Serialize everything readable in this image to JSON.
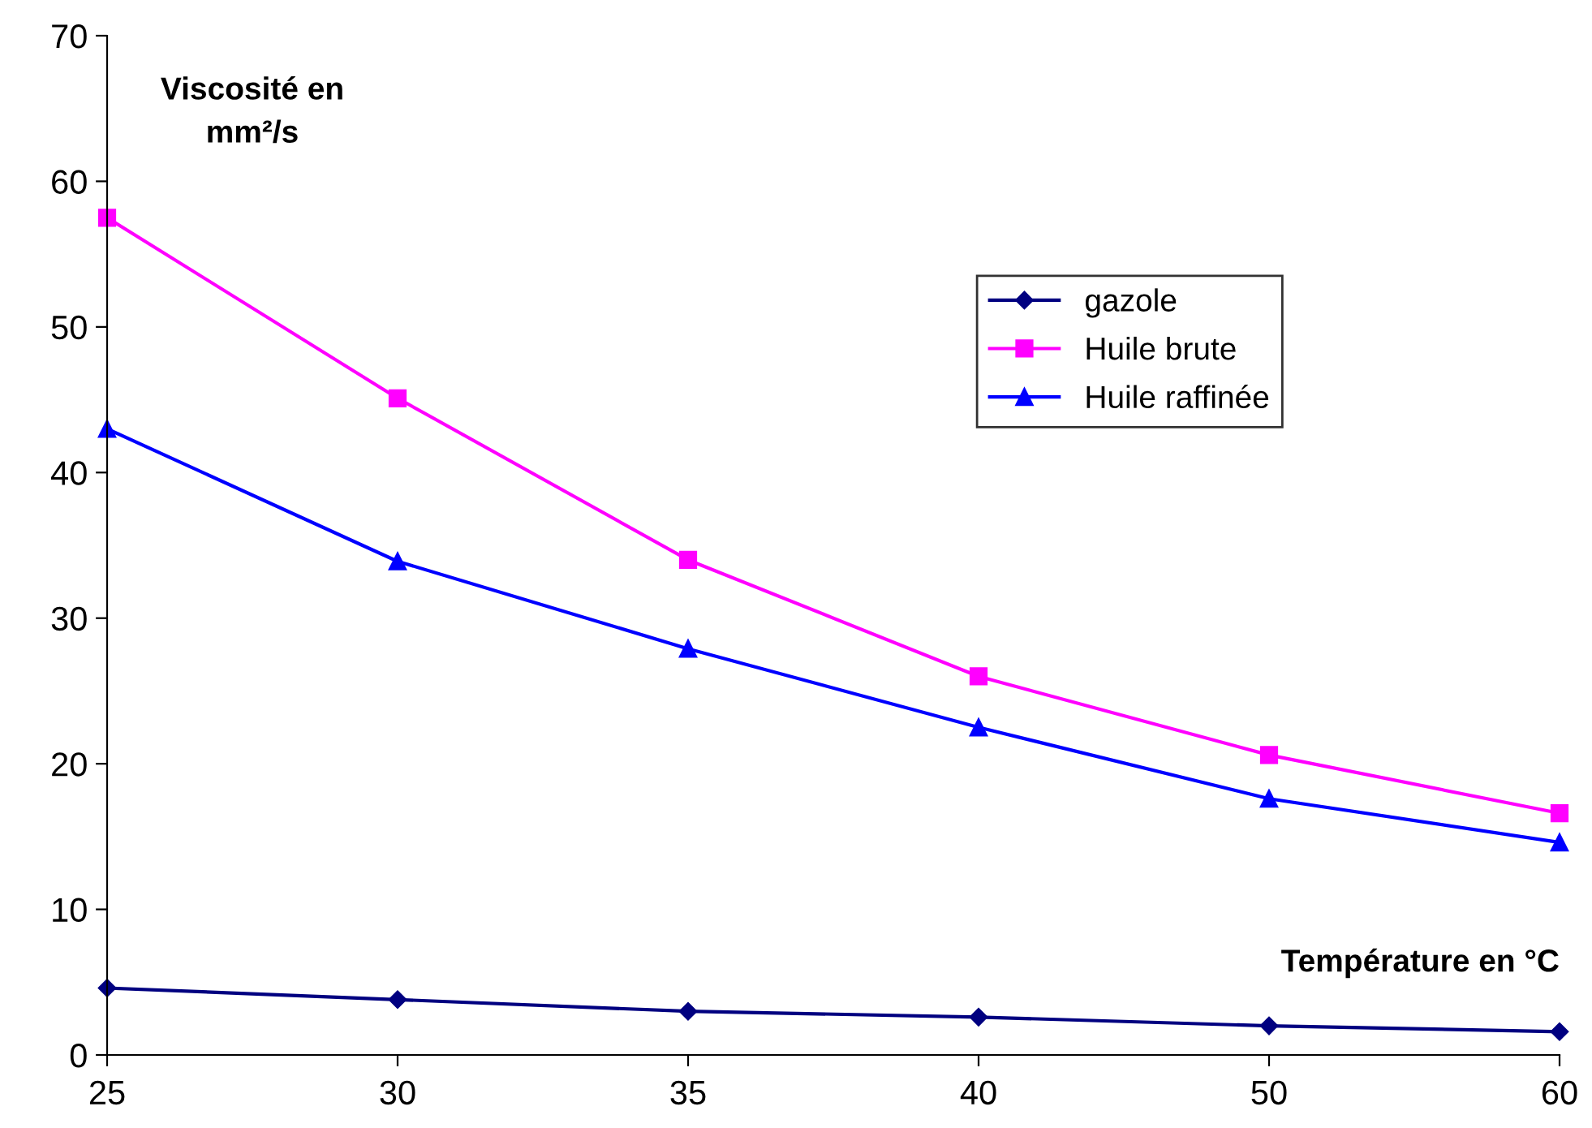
{
  "chart_data": {
    "type": "line",
    "xlabel": "Température en °C",
    "ylabel": "Viscosité en\nmm²/s",
    "categories": [
      "25",
      "30",
      "35",
      "40",
      "50",
      "60"
    ],
    "series": [
      {
        "name": "gazole",
        "color": "#000080",
        "marker": "diamond",
        "values": [
          4.6,
          3.8,
          3.0,
          2.6,
          2.0,
          1.6
        ]
      },
      {
        "name": "Huile brute",
        "color": "#ff00ff",
        "marker": "square",
        "values": [
          57.5,
          45.1,
          34.0,
          26.0,
          20.6,
          16.6
        ]
      },
      {
        "name": "Huile raffinée",
        "color": "#0000ff",
        "marker": "triangle",
        "values": [
          43.0,
          33.9,
          27.9,
          22.5,
          17.6,
          14.6
        ]
      }
    ],
    "ylim": [
      0,
      70
    ],
    "yticks": [
      0,
      10,
      20,
      30,
      40,
      50,
      60,
      70
    ],
    "grid": false,
    "legend": "top right",
    "line_style": "solid"
  }
}
